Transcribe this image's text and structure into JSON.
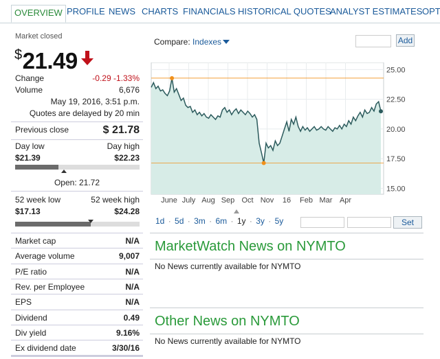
{
  "tabs": [
    {
      "label": "OVERVIEW",
      "active": true
    },
    {
      "label": "PROFILE"
    },
    {
      "label": "NEWS"
    },
    {
      "label": "CHARTS"
    },
    {
      "label": "FINANCIALS"
    },
    {
      "label": "HISTORICAL QUOTES"
    },
    {
      "label": "ANALYST ESTIMATES"
    },
    {
      "label": "OPTI"
    }
  ],
  "quote": {
    "market_status": "Market closed",
    "currency_symbol": "$",
    "price": "21.49",
    "direction": "down",
    "change_label": "Change",
    "change_value": "-0.29 -1.33%",
    "volume_label": "Volume",
    "volume_value": "6,676",
    "timestamp": "May 19, 2016, 3:51 p.m.",
    "delay_note": "Quotes are delayed by 20 min",
    "prev_close_label": "Previous close",
    "prev_close_value": "$ 21.78",
    "day_low_label": "Day low",
    "day_high_label": "Day high",
    "day_low_value": "$21.39",
    "day_high_value": "$22.23",
    "day_range_fill_fraction": 0.35,
    "open_label": "Open: 21.72",
    "open_marker_fraction": 0.39,
    "wk52_low_label": "52 week low",
    "wk52_high_label": "52 week high",
    "wk52_low_value": "$17.13",
    "wk52_high_value": "$24.28",
    "wk52_fill_fraction": 0.61
  },
  "stats": [
    {
      "label": "Market cap",
      "value": "N/A"
    },
    {
      "label": "Average volume",
      "value": "9,007"
    },
    {
      "label": "P/E ratio",
      "value": "N/A"
    },
    {
      "label": "Rev. per Employee",
      "value": "N/A"
    },
    {
      "label": "EPS",
      "value": "N/A"
    },
    {
      "label": "Dividend",
      "value": "0.49"
    },
    {
      "label": "Div yield",
      "value": "9.16%"
    },
    {
      "label": "Ex dividend date",
      "value": "3/30/16"
    }
  ],
  "compare": {
    "label": "Compare:",
    "selector": "Indexes",
    "add_button": "Add"
  },
  "ranges": [
    "1d",
    "5d",
    "3m",
    "6m",
    "1y",
    "3y",
    "5y"
  ],
  "selected_range": "1y",
  "set_button": "Set",
  "colors": {
    "accent_green": "#2a9a3a",
    "link_blue": "#1a5a9a",
    "negative_red": "#c0111a",
    "chart_fill": "#d7ece7",
    "chart_line": "#2b5a5c",
    "marker_orange": "#f0901a"
  },
  "chart_data": {
    "type": "area",
    "x_tick_labels": [
      "June",
      "July",
      "Aug",
      "Sep",
      "Oct",
      "Nov",
      "16",
      "Feb",
      "Mar",
      "Apr"
    ],
    "y_ticks": [
      15.0,
      17.5,
      20.0,
      22.5,
      25.0
    ],
    "y_tick_labels": [
      "15.00",
      "17.50",
      "20.00",
      "22.50",
      "25.00"
    ],
    "ylim": [
      14.5,
      25.6
    ],
    "high_line": 24.28,
    "low_line": 17.13,
    "grid": true,
    "series": [
      {
        "x": [
          0.0,
          0.01,
          0.02,
          0.03,
          0.04,
          0.05,
          0.06,
          0.07,
          0.08,
          0.09,
          0.1,
          0.11,
          0.12,
          0.13,
          0.14,
          0.15,
          0.16,
          0.17,
          0.18,
          0.19,
          0.2,
          0.21,
          0.22,
          0.23,
          0.24,
          0.25,
          0.26,
          0.27,
          0.28,
          0.29,
          0.3,
          0.31,
          0.32,
          0.33,
          0.34,
          0.35,
          0.36,
          0.37,
          0.38,
          0.39,
          0.4,
          0.41,
          0.42,
          0.43,
          0.44,
          0.45,
          0.46,
          0.47,
          0.48,
          0.49,
          0.5,
          0.51,
          0.52,
          0.53,
          0.54,
          0.55,
          0.56,
          0.57,
          0.58,
          0.59,
          0.6,
          0.61,
          0.62,
          0.63,
          0.64,
          0.65,
          0.66,
          0.67,
          0.68,
          0.69,
          0.7,
          0.71,
          0.72,
          0.73,
          0.74,
          0.75,
          0.76,
          0.77,
          0.78,
          0.79,
          0.8,
          0.81,
          0.82,
          0.83,
          0.84,
          0.85,
          0.86,
          0.87,
          0.88,
          0.89,
          0.9,
          0.91,
          0.92,
          0.93,
          0.94,
          0.95,
          0.96,
          0.97,
          0.98,
          0.99,
          1.0
        ],
        "values": [
          23.5,
          23.9,
          23.4,
          23.6,
          23.2,
          23.3,
          23.0,
          22.8,
          23.2,
          24.28,
          23.1,
          23.4,
          22.9,
          22.4,
          22.6,
          22.0,
          21.8,
          21.9,
          21.4,
          21.6,
          21.2,
          21.4,
          21.1,
          21.3,
          21.0,
          20.9,
          21.2,
          21.0,
          20.8,
          21.1,
          21.0,
          21.6,
          21.8,
          21.4,
          21.6,
          21.2,
          21.5,
          21.7,
          21.3,
          21.6,
          21.4,
          21.2,
          21.5,
          21.3,
          21.0,
          21.2,
          20.8,
          18.8,
          18.0,
          17.13,
          18.8,
          18.4,
          18.6,
          18.2,
          19.0,
          18.6,
          18.8,
          19.4,
          20.0,
          20.6,
          19.8,
          20.8,
          20.4,
          21.0,
          20.2,
          19.8,
          20.2,
          19.9,
          20.1,
          19.8,
          20.0,
          20.2,
          19.9,
          20.0,
          20.2,
          20.0,
          19.9,
          20.2,
          20.0,
          19.8,
          20.1,
          20.0,
          20.3,
          20.0,
          20.4,
          20.2,
          20.7,
          20.4,
          21.0,
          20.7,
          21.1,
          21.4,
          21.0,
          21.6,
          21.3,
          21.4,
          21.8,
          21.5,
          22.1,
          22.3,
          21.49
        ]
      }
    ]
  },
  "news": {
    "marketwatch_title": "MarketWatch News on NYMTO",
    "marketwatch_text": "No News currently available for NYMTO",
    "other_title": "Other News on NYMTO",
    "other_text": "No News currently available for NYMTO"
  }
}
